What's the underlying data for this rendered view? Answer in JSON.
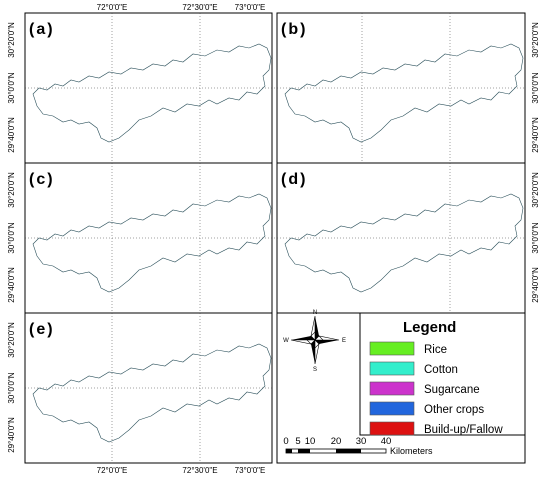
{
  "figure": {
    "top_lon_labels": [
      "72°0'0\"E",
      "72°30'0\"E",
      "73°0'0\"E"
    ],
    "bottom_lon_labels": [
      "72°0'0\"E",
      "72°30'0\"E",
      "73°0'0\"E"
    ],
    "lat_labels": [
      "30°20'0\"N",
      "30°0'0\"N",
      "29°40'0\"N"
    ]
  },
  "panels": [
    {
      "id": "a",
      "label": "(a)"
    },
    {
      "id": "b",
      "label": "(b)"
    },
    {
      "id": "c",
      "label": "(c)"
    },
    {
      "id": "d",
      "label": "(d)"
    },
    {
      "id": "e",
      "label": "(e)"
    }
  ],
  "compass": {
    "n": "N",
    "s": "S",
    "e": "E",
    "w": "W"
  },
  "legend": {
    "title": "Legend",
    "items": [
      {
        "label": "Rice",
        "color": "#66ee22"
      },
      {
        "label": "Cotton",
        "color": "#33eecc"
      },
      {
        "label": "Sugarcane",
        "color": "#cc33cc"
      },
      {
        "label": "Other crops",
        "color": "#2266dd"
      },
      {
        "label": "Build-up/Fallow",
        "color": "#dd1111"
      }
    ]
  },
  "scalebar": {
    "ticks": [
      "0",
      "5",
      "10",
      "20",
      "30",
      "40"
    ],
    "unit": "Kilometers"
  },
  "colors": {
    "cotton": "#33d9b0",
    "rice": "#66dd44",
    "sugarcane": "#bb3388",
    "other": "#3366cc",
    "builtup": "#cc2222"
  }
}
